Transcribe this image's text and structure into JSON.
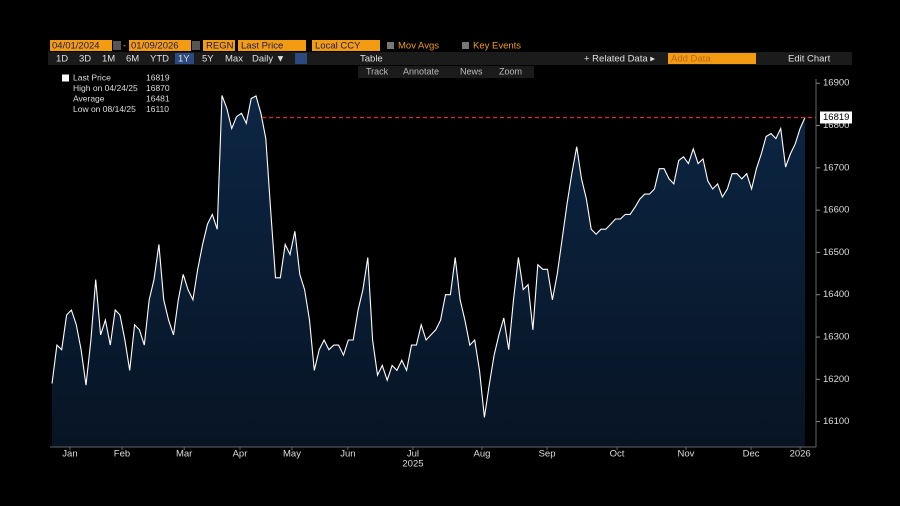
{
  "toolbar": {
    "start_date": "04/01/2024",
    "end_date": "01/09/2026",
    "ticker": "REGN",
    "field": "Last Price",
    "currency": "Local CCY",
    "mov_avgs": "Mov Avgs",
    "key_events": "Key Events",
    "ranges": [
      "1D",
      "3D",
      "1M",
      "6M",
      "YTD",
      "1Y",
      "5Y",
      "Max"
    ],
    "period": "Daily ▼",
    "table": "Table",
    "related": "+ Related Data ▸",
    "add_data": "Add Data",
    "edit_chart": "Edit Chart",
    "tools": [
      "Track",
      "Annotate",
      "News",
      "Zoom"
    ]
  },
  "chart_data": {
    "type": "area",
    "color": "#ffffff",
    "fill": "#0c2644",
    "values": [
      16190,
      16281,
      16270,
      16352,
      16364,
      16329,
      16270,
      16186,
      16293,
      16436,
      16305,
      16340,
      16281,
      16364,
      16352,
      16293,
      16221,
      16329,
      16317,
      16281,
      16388,
      16436,
      16519,
      16388,
      16340,
      16305,
      16388,
      16448,
      16412,
      16388,
      16460,
      16519,
      16567,
      16590,
      16555,
      16871,
      16840,
      16793,
      16821,
      16829,
      16805,
      16864,
      16870,
      16829,
      16769,
      16602,
      16440,
      16440,
      16519,
      16495,
      16550,
      16448,
      16412,
      16340,
      16221,
      16270,
      16293,
      16270,
      16281,
      16281,
      16257,
      16293,
      16293,
      16364,
      16412,
      16488,
      16293,
      16210,
      16233,
      16198,
      16233,
      16221,
      16245,
      16221,
      16281,
      16281,
      16329,
      16293,
      16305,
      16317,
      16340,
      16400,
      16400,
      16488,
      16388,
      16340,
      16281,
      16293,
      16221,
      16110,
      16186,
      16257,
      16305,
      16345,
      16270,
      16388,
      16488,
      16412,
      16424,
      16317,
      16471,
      16460,
      16460,
      16388,
      16448,
      16531,
      16614,
      16686,
      16750,
      16674,
      16626,
      16555,
      16543,
      16555,
      16555,
      16567,
      16579,
      16579,
      16590,
      16590,
      16607,
      16626,
      16638,
      16638,
      16650,
      16698,
      16698,
      16674,
      16662,
      16717,
      16726,
      16710,
      16745,
      16710,
      16721,
      16669,
      16650,
      16662,
      16631,
      16650,
      16686,
      16686,
      16674,
      16686,
      16650,
      16698,
      16733,
      16774,
      16781,
      16769,
      16793,
      16702,
      16733,
      16757,
      16793,
      16819
    ],
    "ylim": [
      16040,
      16910
    ],
    "yticks": [
      16100,
      16200,
      16300,
      16400,
      16500,
      16600,
      16700,
      16800,
      16900
    ],
    "xlim": [
      0,
      155
    ],
    "xticks": [
      {
        "value": 3.7,
        "label": "Jan"
      },
      {
        "value": 14.4,
        "label": "Feb"
      },
      {
        "value": 27.2,
        "label": "Mar"
      },
      {
        "value": 38.7,
        "label": "Apr"
      },
      {
        "value": 49.4,
        "label": "May"
      },
      {
        "value": 60.9,
        "label": "Jun"
      },
      {
        "value": 74.3,
        "label": "Jul"
      },
      {
        "value": 88.5,
        "label": "Aug"
      },
      {
        "value": 101.9,
        "label": "Sep"
      },
      {
        "value": 116.3,
        "label": "Oct"
      },
      {
        "value": 130.5,
        "label": "Nov"
      },
      {
        "value": 143.9,
        "label": "Dec"
      },
      {
        "value": 154,
        "label": "2026"
      }
    ],
    "year_label": {
      "value": 74.3,
      "label": "2025"
    },
    "stats": [
      {
        "label": "Last Price",
        "value": 16819
      },
      {
        "label": "High on 04/24/25",
        "value": 16870
      },
      {
        "label": "Average",
        "value": 16481
      },
      {
        "label": "Low on 08/14/25",
        "value": 16110
      }
    ],
    "reference_color": "#e0282e"
  }
}
